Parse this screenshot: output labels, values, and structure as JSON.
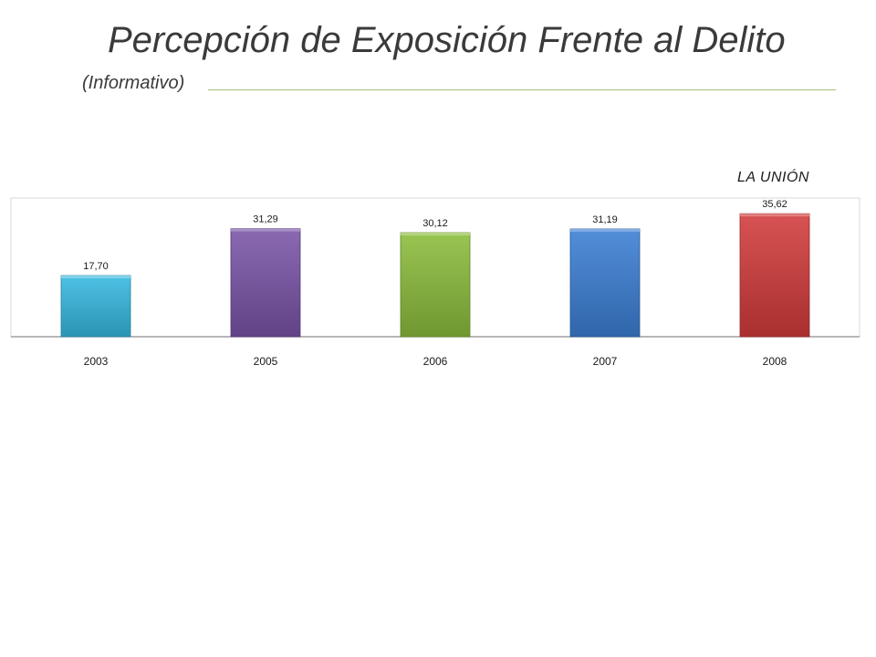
{
  "slide": {
    "title": "Percepción de Exposición Frente al Delito",
    "subtitle": "(Informativo)"
  },
  "chart_data": {
    "type": "bar",
    "title": "LA UNIÓN",
    "categories": [
      "2003",
      "2005",
      "2006",
      "2007",
      "2008"
    ],
    "values": [
      17.7,
      31.29,
      30.12,
      31.19,
      35.62
    ],
    "value_labels": [
      "17,70",
      "31,29",
      "30,12",
      "31,19",
      "35,62"
    ],
    "colors": [
      "#36b9e0",
      "#7a54a8",
      "#8bbd3c",
      "#3c7fd4",
      "#d33b3b"
    ],
    "ylim": [
      0,
      40
    ],
    "grid": false,
    "legend": "none"
  }
}
